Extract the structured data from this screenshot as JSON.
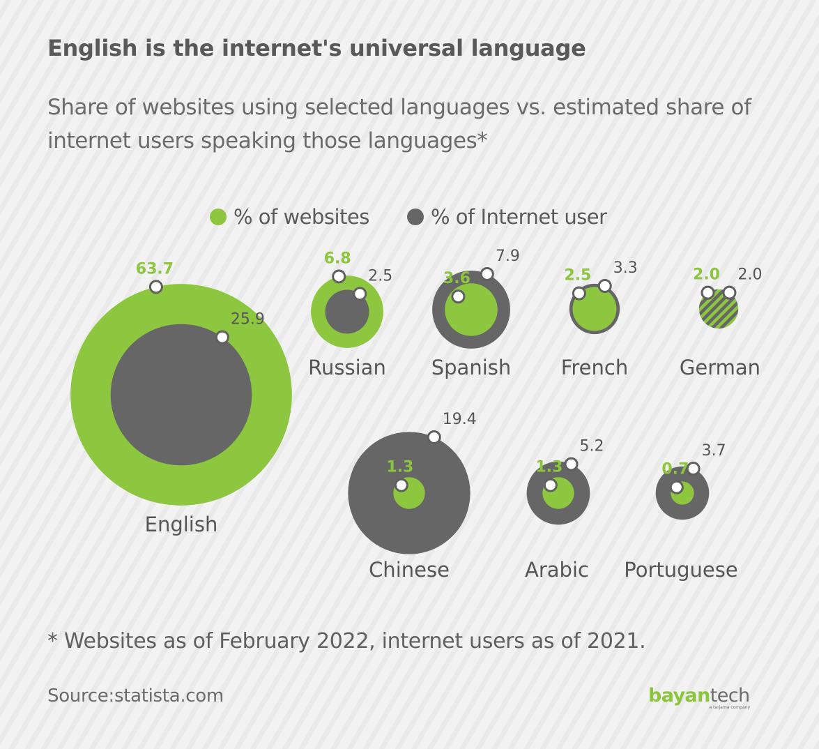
{
  "title": "English is the internet's universal language",
  "subtitle": "Share of websites using selected languages vs. estimated share of internet users speaking those languages*",
  "legend": {
    "websites": "% of websites",
    "users": "% of Internet user"
  },
  "colors": {
    "websites": "#8dc63f",
    "users": "#666666",
    "websites_label": "#8cc63f",
    "users_label": "#555555",
    "name_label": "#555555"
  },
  "chart_data": {
    "type": "bubble",
    "title": "English is the internet's universal language",
    "series": [
      {
        "name": "% of websites",
        "values": [
          63.7,
          6.8,
          3.6,
          2.5,
          2.0,
          1.3,
          1.3,
          0.7
        ]
      },
      {
        "name": "% of Internet user",
        "values": [
          25.9,
          2.5,
          7.9,
          3.3,
          2.0,
          19.4,
          5.2,
          3.7
        ]
      }
    ],
    "categories": [
      "English",
      "Russian",
      "Spanish",
      "French",
      "German",
      "Chinese",
      "Arabic",
      "Portuguese"
    ],
    "points": [
      {
        "language": "English",
        "websites": 63.7,
        "users": 25.9,
        "websites_label": "63.7",
        "users_label": "25.9"
      },
      {
        "language": "Russian",
        "websites": 6.8,
        "users": 2.5,
        "websites_label": "6.8",
        "users_label": "2.5"
      },
      {
        "language": "Spanish",
        "websites": 3.6,
        "users": 7.9,
        "websites_label": "3.6",
        "users_label": "7.9"
      },
      {
        "language": "French",
        "websites": 2.5,
        "users": 3.3,
        "websites_label": "2.5",
        "users_label": "3.3"
      },
      {
        "language": "German",
        "websites": 2.0,
        "users": 2.0,
        "websites_label": "2.0",
        "users_label": "2.0"
      },
      {
        "language": "Chinese",
        "websites": 1.3,
        "users": 19.4,
        "websites_label": "1.3",
        "users_label": "19.4"
      },
      {
        "language": "Arabic",
        "websites": 1.3,
        "users": 5.2,
        "websites_label": "1.3",
        "users_label": "5.2"
      },
      {
        "language": "Portuguese",
        "websites": 0.7,
        "users": 3.7,
        "websites_label": "0.7",
        "users_label": "3.7"
      }
    ]
  },
  "footnote": "* Websites as of February 2022, internet users as of 2021.",
  "source": "Source:statista.com",
  "brand": {
    "part1": "bayan",
    "part2": "tech",
    "tagline": "a tarjama company"
  }
}
